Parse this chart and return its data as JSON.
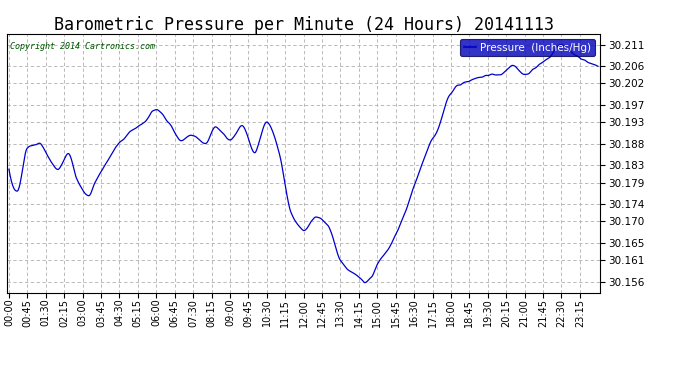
{
  "title": "Barometric Pressure per Minute (24 Hours) 20141113",
  "copyright": "Copyright 2014 Cartronics.com",
  "legend_label": "Pressure  (Inches/Hg)",
  "yticks": [
    30.156,
    30.161,
    30.165,
    30.17,
    30.174,
    30.179,
    30.183,
    30.188,
    30.193,
    30.197,
    30.202,
    30.206,
    30.211
  ],
  "ylim": [
    30.1535,
    30.2135
  ],
  "xtick_labels": [
    "00:00",
    "00:45",
    "01:30",
    "02:15",
    "03:00",
    "03:45",
    "04:30",
    "05:15",
    "06:00",
    "06:45",
    "07:30",
    "08:15",
    "09:00",
    "09:45",
    "10:30",
    "11:15",
    "12:00",
    "12:45",
    "13:30",
    "14:15",
    "15:00",
    "15:45",
    "16:30",
    "17:15",
    "18:00",
    "18:45",
    "19:30",
    "20:15",
    "21:00",
    "21:45",
    "22:30",
    "23:15"
  ],
  "line_color": "#0000cc",
  "grid_color": "#b0b0b0",
  "bg_color": "#ffffff",
  "title_fontsize": 12,
  "legend_bg": "#0000bb",
  "legend_fg": "#ffffff",
  "x_ctrl": [
    0,
    20,
    45,
    75,
    95,
    120,
    145,
    165,
    195,
    210,
    235,
    260,
    300,
    330,
    360,
    390,
    420,
    450,
    480,
    505,
    540,
    570,
    600,
    630,
    660,
    690,
    720,
    750,
    780,
    810,
    840,
    855,
    870,
    885,
    900,
    930,
    960,
    990,
    1020,
    1050,
    1080,
    1110,
    1140,
    1170,
    1200,
    1230,
    1260,
    1290,
    1320,
    1350,
    1380,
    1410,
    1439
  ],
  "y_ctrl": [
    30.182,
    30.177,
    30.187,
    30.188,
    30.185,
    30.182,
    30.186,
    30.18,
    30.176,
    30.179,
    30.183,
    30.187,
    30.191,
    30.193,
    30.196,
    30.193,
    30.189,
    30.19,
    30.188,
    30.192,
    30.189,
    30.192,
    30.186,
    30.193,
    30.186,
    30.172,
    30.168,
    30.171,
    30.169,
    30.161,
    30.158,
    30.157,
    30.156,
    30.157,
    30.16,
    30.164,
    30.17,
    30.178,
    30.186,
    30.192,
    30.2,
    30.202,
    30.203,
    30.204,
    30.204,
    30.206,
    30.204,
    30.206,
    30.208,
    30.211,
    30.209,
    30.207,
    30.206
  ]
}
